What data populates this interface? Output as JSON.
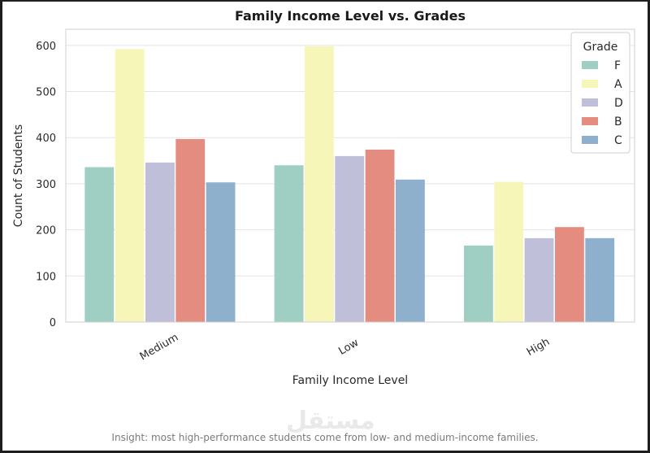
{
  "chart_data": {
    "type": "bar",
    "title": "Family Income Level vs. Grades",
    "xlabel": "Family Income Level",
    "ylabel": "Count of Students",
    "categories": [
      "Medium",
      "Low",
      "High"
    ],
    "yticks": [
      0,
      100,
      200,
      300,
      400,
      500,
      600
    ],
    "ylim": [
      0,
      635
    ],
    "grid": true,
    "legend": {
      "title": "Grade",
      "placement": "top-right"
    },
    "series": [
      {
        "name": "F",
        "color": "#9fcfc3",
        "values": [
          336,
          340,
          166
        ]
      },
      {
        "name": "A",
        "color": "#f6f6b8",
        "values": [
          592,
          598,
          304
        ]
      },
      {
        "name": "D",
        "color": "#c0bfd9",
        "values": [
          346,
          360,
          182
        ]
      },
      {
        "name": "B",
        "color": "#e48c7f",
        "values": [
          397,
          374,
          206
        ]
      },
      {
        "name": "C",
        "color": "#8fb0cc",
        "values": [
          303,
          309,
          182
        ]
      }
    ]
  },
  "insight": "Insight:  most high-performance students come from low- and medium-income families.",
  "watermark": "مستقل"
}
